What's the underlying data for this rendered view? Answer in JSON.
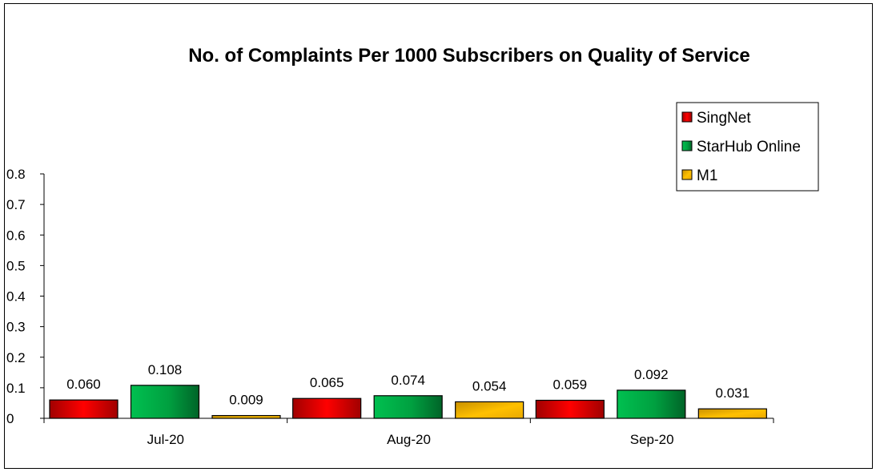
{
  "chart_data": {
    "type": "bar",
    "title": "No. of Complaints Per 1000 Subscribers on Quality of Service",
    "categories": [
      "Jul-20",
      "Aug-20",
      "Sep-20"
    ],
    "series": [
      {
        "name": "SingNet",
        "values": [
          0.06,
          0.065,
          0.059
        ],
        "labels": [
          "0.060",
          "0.065",
          "0.059"
        ],
        "color": "#ff0000"
      },
      {
        "name": "StarHub Online",
        "values": [
          0.108,
          0.074,
          0.092
        ],
        "labels": [
          "0.108",
          "0.074",
          "0.092"
        ],
        "color": "#00b050"
      },
      {
        "name": "M1",
        "values": [
          0.009,
          0.054,
          0.031
        ],
        "labels": [
          "0.009",
          "0.054",
          "0.031"
        ],
        "color": "#ffc000"
      }
    ],
    "ylim": [
      0,
      0.8
    ],
    "yticks": [
      "0",
      "0.1",
      "0.2",
      "0.3",
      "0.4",
      "0.5",
      "0.6",
      "0.7",
      "0.8"
    ],
    "legend": "top-right",
    "grid": false
  }
}
